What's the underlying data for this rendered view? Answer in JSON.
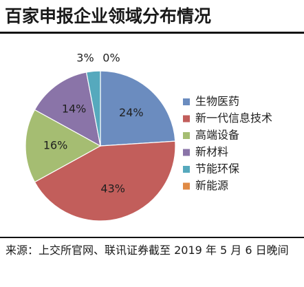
{
  "title": "百家申报企业领域分布情况",
  "source": "来源：上交所官网、联讯证券截至 2019 年 5 月 6 日晚间",
  "chart_data": {
    "type": "pie",
    "title": "百家申报企业领域分布情况",
    "categories": [
      "生物医药",
      "新一代信息技术",
      "高端设备",
      "新材料",
      "节能环保",
      "新能源"
    ],
    "values": [
      24,
      43,
      16,
      14,
      3,
      0
    ],
    "labels": [
      "24%",
      "43%",
      "16%",
      "14%",
      "3%",
      "0%"
    ],
    "colors": [
      "#6b8cbf",
      "#c25e5b",
      "#a5bd72",
      "#8a74a8",
      "#56a9bd",
      "#e08a45"
    ],
    "start": "12 o'clock",
    "direction": "clockwise",
    "legend_position": "right"
  }
}
